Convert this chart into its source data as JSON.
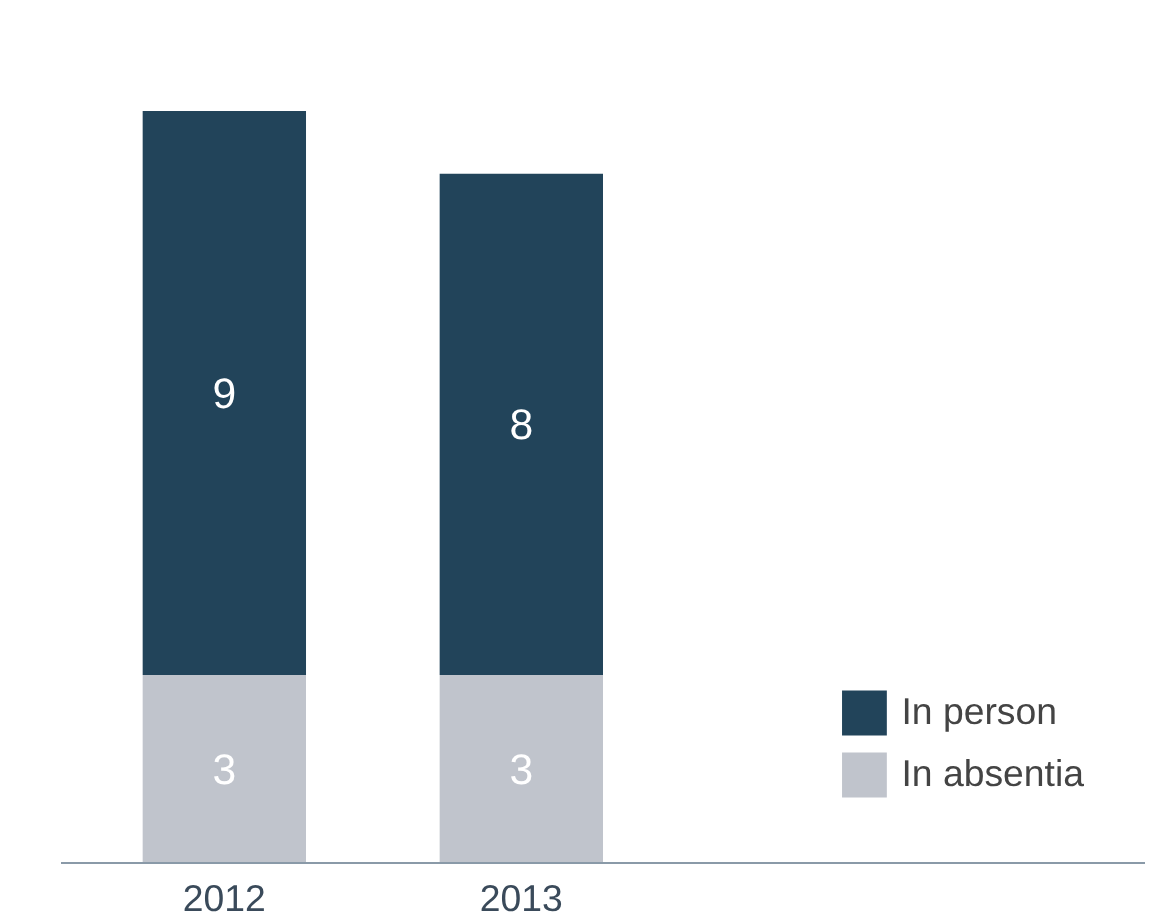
{
  "chart_data": {
    "type": "bar",
    "stacked": true,
    "categories": [
      "2012",
      "2013"
    ],
    "series": [
      {
        "name": "In absentia",
        "color": "#c0c4cc",
        "values": [
          3,
          3
        ]
      },
      {
        "name": "In person",
        "color": "#22445a",
        "values": [
          9,
          8
        ]
      }
    ],
    "data_labels": true,
    "legend": "bottom right",
    "grid": false
  }
}
